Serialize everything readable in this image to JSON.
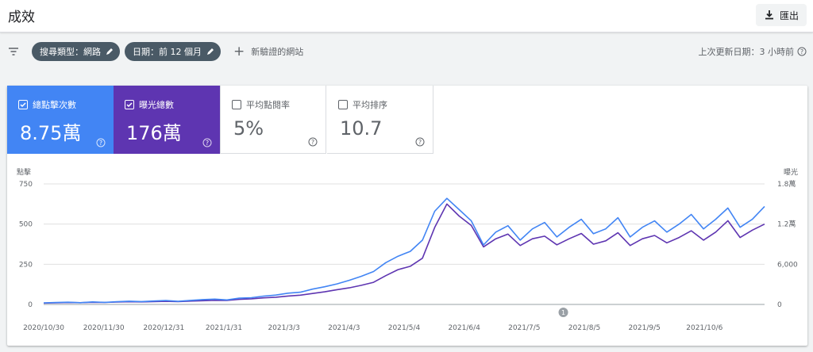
{
  "header": {
    "title": "成效",
    "export_label": "匯出"
  },
  "filters": {
    "chips": [
      {
        "label": "搜尋類型：網路"
      },
      {
        "label": "日期：前 12 個月"
      }
    ],
    "add_label": "新驗證的網站",
    "last_updated": "上次更新日期：3 小時前"
  },
  "metrics": [
    {
      "label": "總點擊次數",
      "value": "8.75萬",
      "selected": true,
      "color": "#4285f4"
    },
    {
      "label": "曝光總數",
      "value": "176萬",
      "selected": true,
      "color": "#5e35b1"
    },
    {
      "label": "平均點閱率",
      "value": "5%",
      "selected": false
    },
    {
      "label": "平均排序",
      "value": "10.7",
      "selected": false
    }
  ],
  "chart_data": {
    "type": "line",
    "left_axis_title": "點擊",
    "right_axis_title": "曝光",
    "left_ticks": [
      "750",
      "500",
      "250",
      "0"
    ],
    "right_ticks": [
      "1.8萬",
      "1.2萬",
      "6,000",
      "0"
    ],
    "left_range": [
      0,
      750
    ],
    "right_range": [
      0,
      18000
    ],
    "x_labels": [
      "2020/10/30",
      "2020/11/30",
      "2020/12/31",
      "2021/1/31",
      "2021/3/3",
      "2021/4/3",
      "2021/5/4",
      "2021/6/4",
      "2021/7/5",
      "2021/8/5",
      "2021/9/5",
      "2021/10/6"
    ],
    "annotation": "1",
    "grid": true,
    "series": [
      {
        "name": "總點擊次數",
        "axis": "left",
        "color": "#4285f4",
        "values": [
          10,
          12,
          14,
          11,
          16,
          13,
          17,
          20,
          18,
          21,
          24,
          19,
          25,
          30,
          33,
          28,
          39,
          42,
          52,
          58,
          70,
          76,
          95,
          110,
          128,
          150,
          175,
          205,
          260,
          300,
          330,
          400,
          580,
          660,
          590,
          520,
          370,
          450,
          490,
          400,
          470,
          510,
          420,
          480,
          530,
          440,
          470,
          540,
          420,
          480,
          520,
          450,
          500,
          560,
          470,
          530,
          600,
          480,
          530,
          610
        ]
      },
      {
        "name": "曝光總數",
        "axis": "right",
        "color": "#5e35b1",
        "values": [
          200,
          240,
          280,
          260,
          320,
          300,
          360,
          400,
          380,
          420,
          460,
          430,
          500,
          560,
          620,
          600,
          760,
          840,
          980,
          1080,
          1260,
          1380,
          1640,
          1880,
          2200,
          2480,
          2850,
          3300,
          4300,
          5200,
          5700,
          6900,
          11500,
          15000,
          13200,
          11800,
          8600,
          9800,
          10500,
          8800,
          9800,
          10200,
          8900,
          9800,
          10600,
          9000,
          9500,
          10700,
          8800,
          9800,
          10300,
          9200,
          10000,
          11000,
          9600,
          10800,
          12500,
          10000,
          11100,
          12000
        ]
      }
    ]
  }
}
